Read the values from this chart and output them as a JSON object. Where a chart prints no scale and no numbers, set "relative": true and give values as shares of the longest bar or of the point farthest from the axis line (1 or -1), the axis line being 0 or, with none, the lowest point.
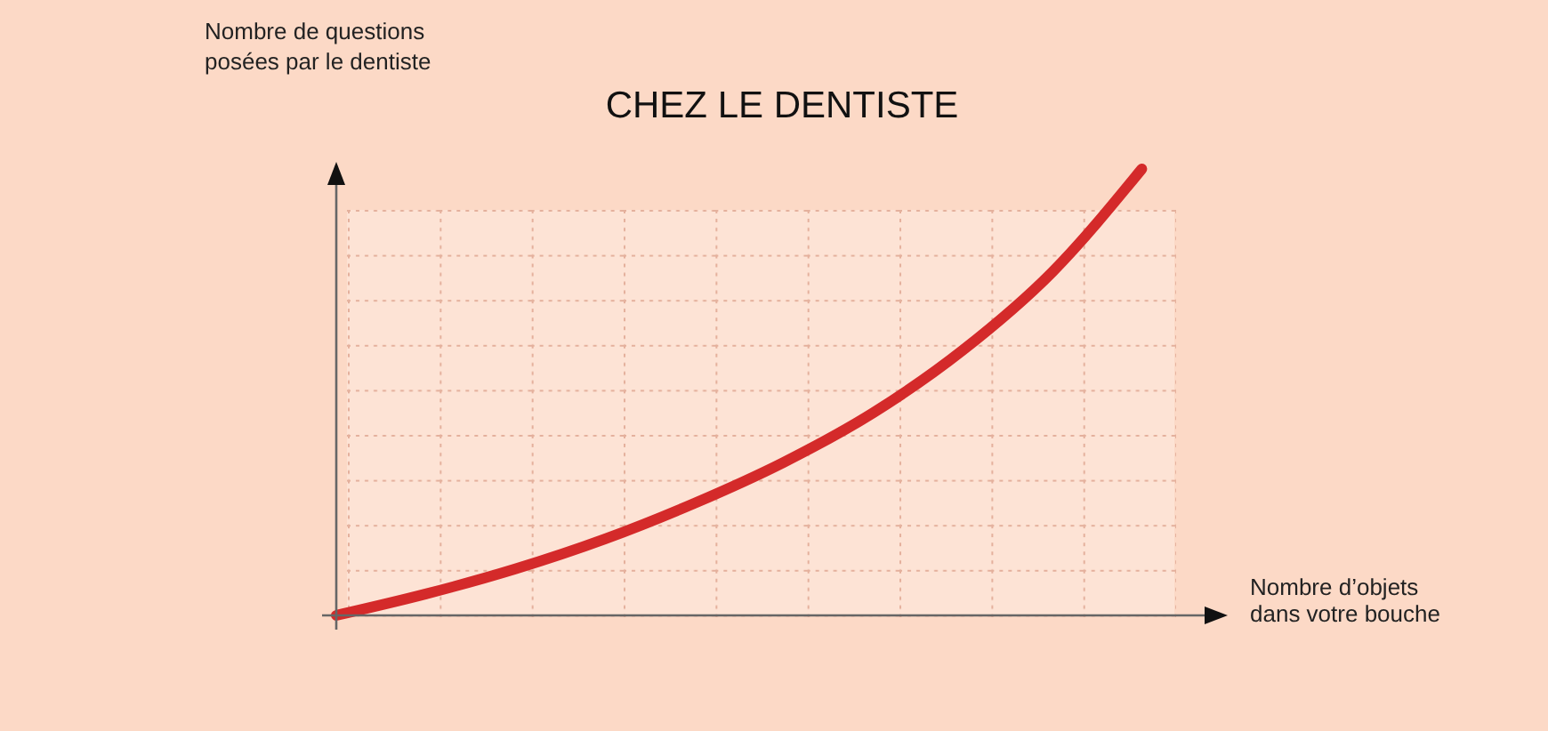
{
  "chart_data": {
    "type": "line",
    "title": "CHEZ LE DENTISTE",
    "xlabel": "Nombre d’objets\ndans votre bouche",
    "ylabel": "Nombre de questions\nposées par le dentiste",
    "categories": [
      null,
      null,
      null,
      null,
      null,
      null,
      null,
      null,
      null,
      null
    ],
    "series": [
      {
        "color": "#d42a2a",
        "values": [
          0,
          0.048,
          0.104,
          0.171,
          0.251,
          0.343,
          0.454,
          0.594,
          0.769,
          1
        ]
      }
    ],
    "relative": true
  }
}
